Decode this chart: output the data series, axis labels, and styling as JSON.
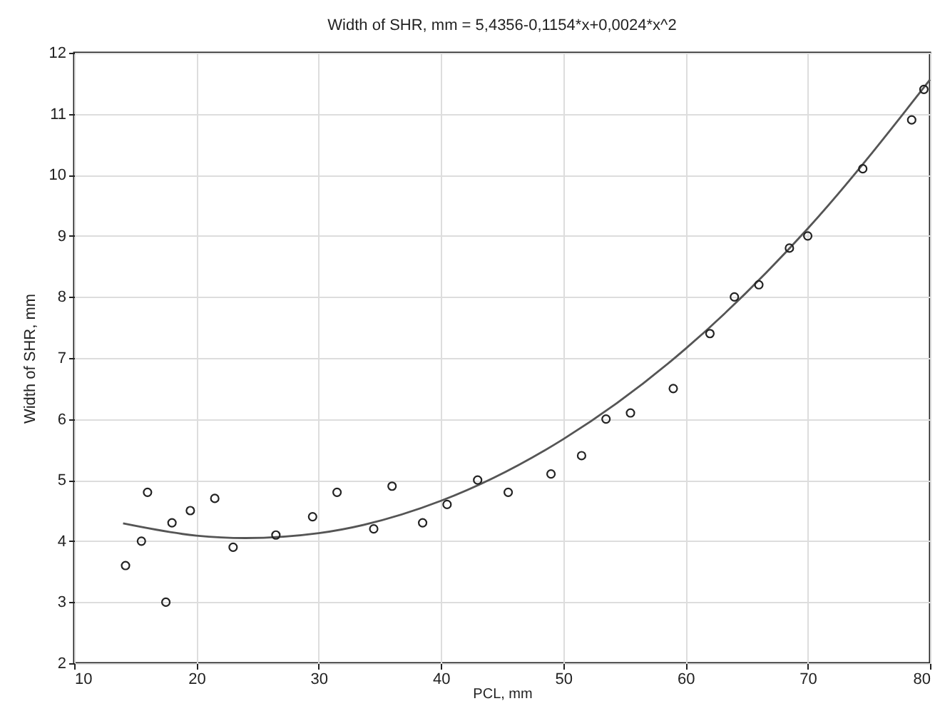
{
  "chart_data": {
    "type": "scatter",
    "title": "Width of SHR, mm = 5,4356-0,1154*x+0,0024*x^2",
    "xlabel": "PCL, mm",
    "ylabel": "Width of SHR, mm",
    "xlim": [
      10,
      80
    ],
    "xticks": [
      10,
      20,
      30,
      40,
      50,
      60,
      70,
      80
    ],
    "ylim": [
      2,
      12
    ],
    "yticks": [
      2,
      3,
      4,
      5,
      6,
      7,
      8,
      9,
      10,
      11,
      12
    ],
    "grid": true,
    "marker": "circle",
    "series": [
      {
        "color": "#222222",
        "x": [
          14.2,
          15.5,
          16.0,
          17.5,
          18,
          19.5,
          21.5,
          23,
          26.5,
          29.5,
          31.5,
          34.5,
          36,
          38.5,
          40.5,
          43,
          45.5,
          49,
          51.5,
          53.5,
          55.5,
          59,
          62,
          64,
          66,
          68.5,
          70,
          74.5,
          78.5,
          79.5
        ],
        "values": [
          3.6,
          4.0,
          4.8,
          3.0,
          4.3,
          4.5,
          4.7,
          3.9,
          4.1,
          4.4,
          4.8,
          4.2,
          4.9,
          4.3,
          4.6,
          5.0,
          4.8,
          5.1,
          5.4,
          6.0,
          6.1,
          6.5,
          7.4,
          8.0,
          8.2,
          8.8,
          9.0,
          10.1,
          10.9,
          11.4
        ]
      },
      {
        "type": "line",
        "color": "#555555",
        "marker": "none",
        "line_style": "solid",
        "x": [
          14,
          20,
          24,
          30,
          40,
          50,
          60,
          70,
          80
        ],
        "values": [
          4.29,
          4.09,
          4.05,
          4.13,
          4.66,
          5.67,
          7.15,
          9.12,
          11.56
        ]
      }
    ]
  }
}
